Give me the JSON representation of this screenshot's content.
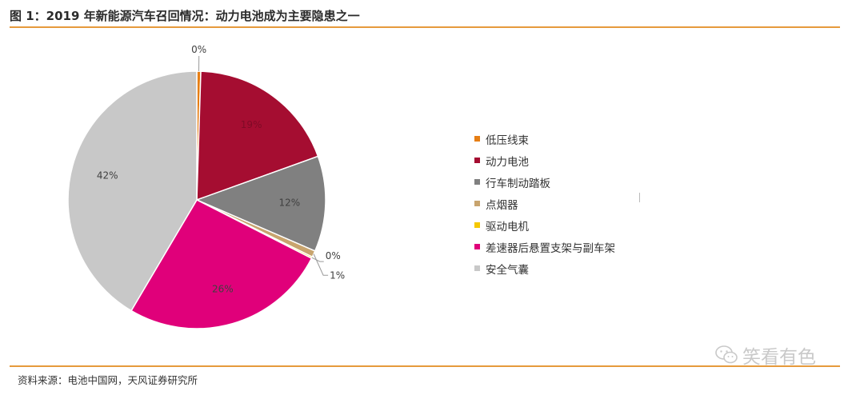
{
  "title": "图 1：2019 年新能源汽车召回情况：动力电池成为主要隐患之一",
  "source": "资料来源：电池中国网，天风证券研究所",
  "watermark": "笑看有色",
  "chart_data": {
    "type": "pie",
    "title": "",
    "start_angle_deg": 0,
    "direction": "clockwise",
    "legend_position": "right",
    "slices": [
      {
        "label": "低压线束",
        "value": 0.5,
        "display": "0%",
        "color": "#e67e14"
      },
      {
        "label": "动力电池",
        "value": 19,
        "display": "19%",
        "color": "#a50d31"
      },
      {
        "label": "行车制动踏板",
        "value": 12,
        "display": "12%",
        "color": "#808080"
      },
      {
        "label": "点烟器",
        "value": 0.8,
        "display": "1%",
        "color": "#c8a46e"
      },
      {
        "label": "驱动电机",
        "value": 0.2,
        "display": "0%",
        "color": "#f5c800"
      },
      {
        "label": "差速器后悬置支架与副车架",
        "value": 26,
        "display": "26%",
        "color": "#e0007a"
      },
      {
        "label": "安全气囊",
        "value": 41.5,
        "display": "42%",
        "color": "#c8c8c8"
      }
    ]
  }
}
